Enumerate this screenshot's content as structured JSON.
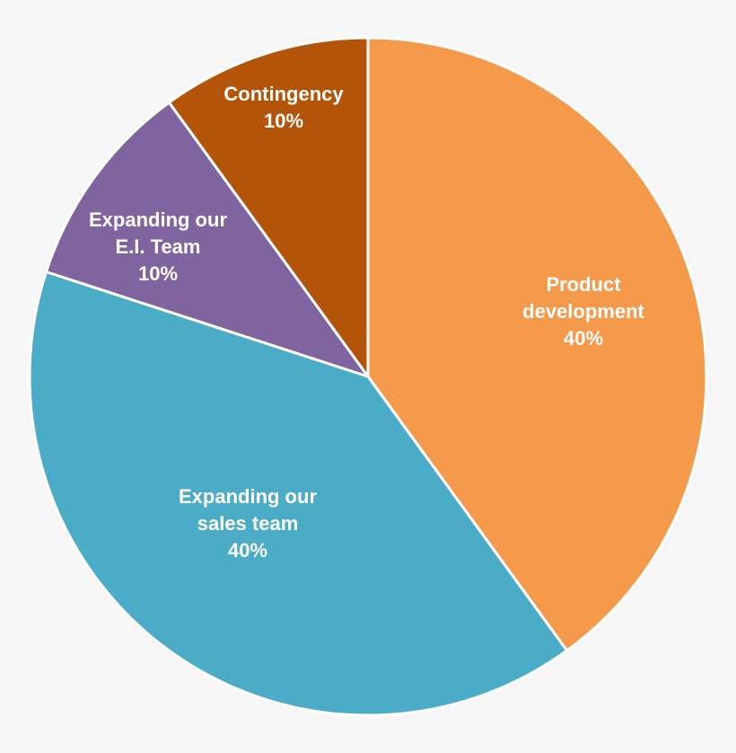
{
  "chart_data": {
    "type": "pie",
    "title": "",
    "start": "12 o'clock",
    "direction": "clockwise",
    "slices": [
      {
        "name": "product-development",
        "label_lines": [
          "Product",
          "development"
        ],
        "value": 40,
        "value_label": "40%",
        "color": "#f5994a"
      },
      {
        "name": "expanding-sales-team",
        "label_lines": [
          "Expanding our",
          "sales team"
        ],
        "value": 40,
        "value_label": "40%",
        "color": "#4aacc6"
      },
      {
        "name": "expanding-ei-team",
        "label_lines": [
          "Expanding our",
          "E.I. Team"
        ],
        "value": 10,
        "value_label": "10%",
        "color": "#8064a0"
      },
      {
        "name": "contingency",
        "label_lines": [
          "Contingency"
        ],
        "value": 10,
        "value_label": "10%",
        "color": "#b45408"
      }
    ]
  }
}
